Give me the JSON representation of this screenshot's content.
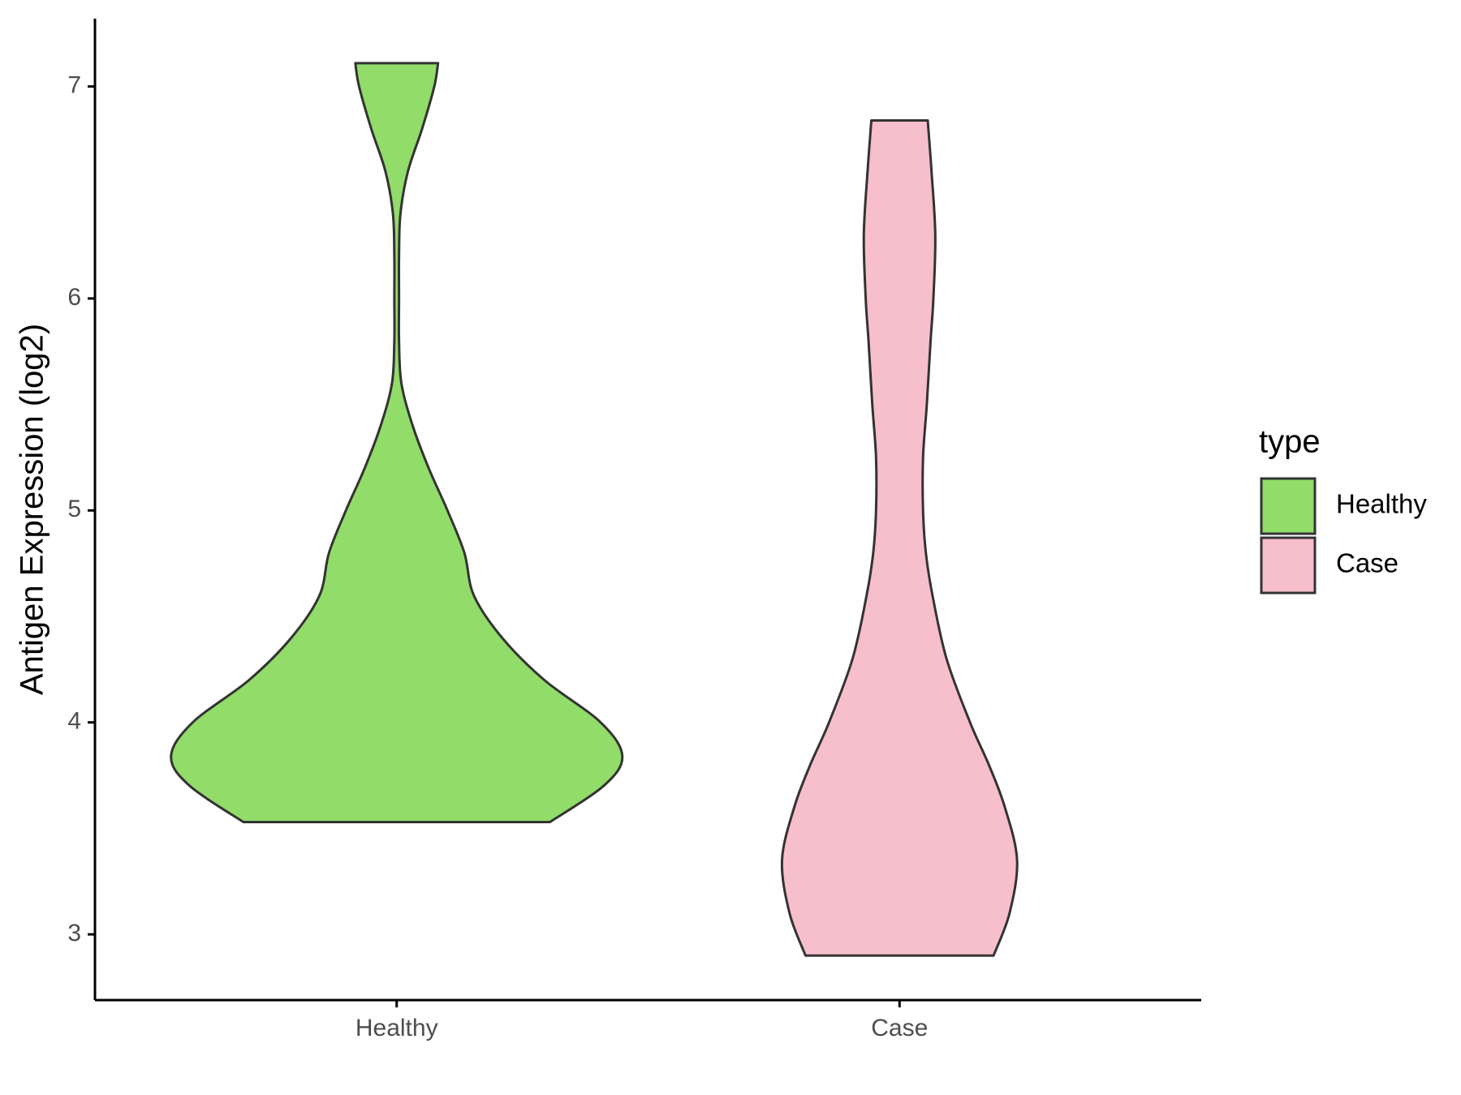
{
  "chart_data": {
    "type": "violin",
    "y_label": "Antigen Expression (log2)",
    "categories": [
      "Healthy",
      "Case"
    ],
    "legend_title": "type",
    "ylim": [
      2.69,
      7.32
    ],
    "yticks": [
      3,
      4,
      5,
      6,
      7
    ],
    "series": [
      {
        "name": "Healthy",
        "color": "#92dc6a",
        "y": [
          3.53,
          3.7,
          3.84,
          4.0,
          4.2,
          4.4,
          4.6,
          4.8,
          5.0,
          5.2,
          5.4,
          5.6,
          5.8,
          6.0,
          6.2,
          6.4,
          6.6,
          6.8,
          7.0,
          7.11
        ],
        "density": [
          163,
          220,
          240,
          217,
          157,
          112,
          82,
          72,
          54,
          34,
          17,
          5,
          2.5,
          2.5,
          2.5,
          4,
          12,
          27,
          40,
          44
        ]
      },
      {
        "name": "Case",
        "color": "#f7bfcb",
        "y": [
          2.9,
          3.1,
          3.35,
          3.6,
          3.8,
          4.0,
          4.3,
          4.6,
          4.8,
          5.0,
          5.25,
          5.5,
          5.8,
          6.0,
          6.3,
          6.6,
          6.84
        ],
        "density": [
          100,
          117,
          125,
          112,
          95,
          75,
          50,
          35,
          28,
          25,
          25,
          29,
          33,
          36,
          38,
          34,
          30
        ]
      }
    ]
  }
}
